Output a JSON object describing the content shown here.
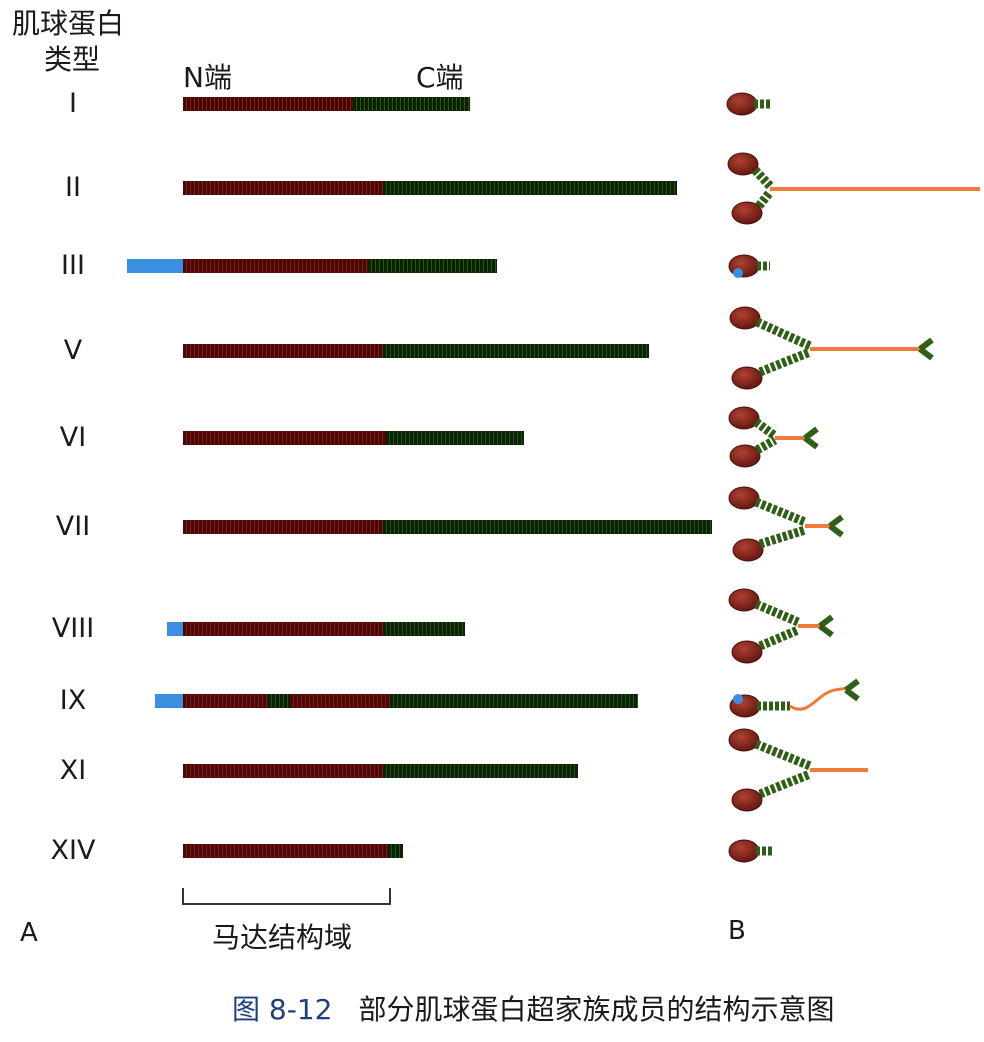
{
  "header": {
    "line1": "肌球蛋白",
    "line2": "类型",
    "n_term": "N端",
    "c_term": "C端"
  },
  "colors": {
    "motor": "#8b2a20",
    "tail": "#2f5f16",
    "nterm_ext": "#3a8fe0",
    "filament": "#f07a3a",
    "head": "#7a1f18"
  },
  "rows": [
    {
      "label": "I",
      "blue": 0,
      "segs": [
        [
          "motor",
          170
        ],
        [
          "tail",
          117
        ]
      ]
    },
    {
      "label": "II",
      "blue": 0,
      "segs": [
        [
          "motor",
          200
        ],
        [
          "tail",
          294
        ]
      ]
    },
    {
      "label": "III",
      "blue": 56,
      "segs": [
        [
          "motor",
          185
        ],
        [
          "tail",
          129
        ]
      ]
    },
    {
      "label": "V",
      "blue": 0,
      "segs": [
        [
          "motor",
          200
        ],
        [
          "tail",
          266
        ]
      ]
    },
    {
      "label": "VI",
      "blue": 0,
      "segs": [
        [
          "motor",
          203
        ],
        [
          "tail",
          138
        ]
      ]
    },
    {
      "label": "VII",
      "blue": 0,
      "segs": [
        [
          "motor",
          200
        ],
        [
          "tail",
          329
        ]
      ]
    },
    {
      "label": "VIII",
      "blue": 16,
      "segs": [
        [
          "motor",
          200
        ],
        [
          "tail",
          82
        ]
      ]
    },
    {
      "label": "IX",
      "blue": 28,
      "segs": [
        [
          "motor",
          85
        ],
        [
          "tail",
          22
        ],
        [
          "motor",
          100
        ],
        [
          "tail",
          248
        ]
      ]
    },
    {
      "label": "XI",
      "blue": 0,
      "segs": [
        [
          "motor",
          200
        ],
        [
          "tail",
          195
        ]
      ]
    },
    {
      "label": "XIV",
      "blue": 0,
      "segs": [
        [
          "motor",
          205
        ],
        [
          "tail",
          15
        ]
      ]
    }
  ],
  "footer": {
    "panel_a": "A",
    "panel_b": "B",
    "motor_domain": "马达结构域",
    "figure_number": "图 8-12",
    "caption": "部分肌球蛋白超家族成员的结构示意图"
  }
}
